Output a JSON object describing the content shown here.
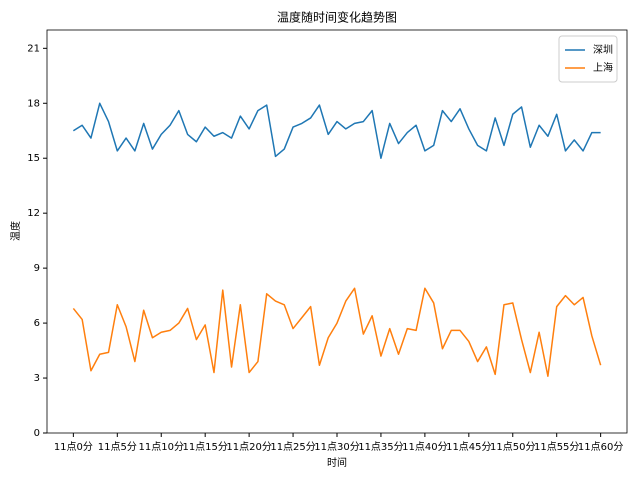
{
  "chart_data": {
    "type": "line",
    "title": "温度随时间变化趋势图",
    "x_label": "时间",
    "y_label": "温度",
    "categories": [
      "11点0分",
      null,
      null,
      null,
      null,
      "11点5分",
      null,
      null,
      null,
      null,
      "11点10分",
      null,
      null,
      null,
      null,
      "11点15分",
      null,
      null,
      null,
      null,
      "11点20分",
      null,
      null,
      null,
      null,
      "11点25分",
      null,
      null,
      null,
      null,
      "11点30分",
      null,
      null,
      null,
      null,
      "11点35分",
      null,
      null,
      null,
      null,
      "11点40分",
      null,
      null,
      null,
      null,
      "11点45分",
      null,
      null,
      null,
      null,
      "11点50分",
      null,
      null,
      null,
      null,
      "11点55分",
      null,
      null,
      null,
      null,
      "11点60分"
    ],
    "series": [
      {
        "name": "深圳",
        "color": "#1f77b4",
        "values": [
          16.5,
          16.8,
          16.1,
          18.0,
          17.0,
          15.4,
          16.1,
          15.4,
          16.9,
          15.5,
          16.3,
          16.8,
          17.6,
          16.3,
          15.9,
          16.7,
          16.2,
          16.4,
          16.1,
          17.3,
          16.6,
          17.6,
          17.9,
          15.1,
          15.5,
          16.7,
          16.9,
          17.2,
          17.9,
          16.3,
          17.0,
          16.6,
          16.9,
          17.0,
          17.6,
          15.0,
          16.9,
          15.8,
          16.4,
          16.8,
          15.4,
          15.7,
          17.6,
          17.0,
          17.7,
          16.6,
          15.7,
          15.4,
          17.2,
          15.7,
          17.4,
          17.8,
          15.6,
          16.8,
          16.2,
          17.4,
          15.4,
          16.0,
          15.4,
          16.4,
          16.4
        ]
      },
      {
        "name": "上海",
        "color": "#ff7f0e",
        "values": [
          6.8,
          6.2,
          3.4,
          4.3,
          4.4,
          7.0,
          5.8,
          3.9,
          6.7,
          5.2,
          5.5,
          5.6,
          6.0,
          6.8,
          5.1,
          5.9,
          3.3,
          7.8,
          3.6,
          7.0,
          3.3,
          3.9,
          7.6,
          7.2,
          7.0,
          5.7,
          6.3,
          6.9,
          3.7,
          5.2,
          6.0,
          7.2,
          7.9,
          5.4,
          6.4,
          4.2,
          5.7,
          4.3,
          5.7,
          5.6,
          7.9,
          7.1,
          4.6,
          5.6,
          5.6,
          5.0,
          3.9,
          4.7,
          3.2,
          7.0,
          7.1,
          5.1,
          3.3,
          5.5,
          3.1,
          6.9,
          7.5,
          7.0,
          7.4,
          5.3,
          3.7
        ]
      }
    ],
    "ylim": [
      0,
      22
    ],
    "yticks": [
      0,
      3,
      6,
      9,
      12,
      15,
      18,
      21
    ],
    "grid": false,
    "legend": "upper right"
  }
}
